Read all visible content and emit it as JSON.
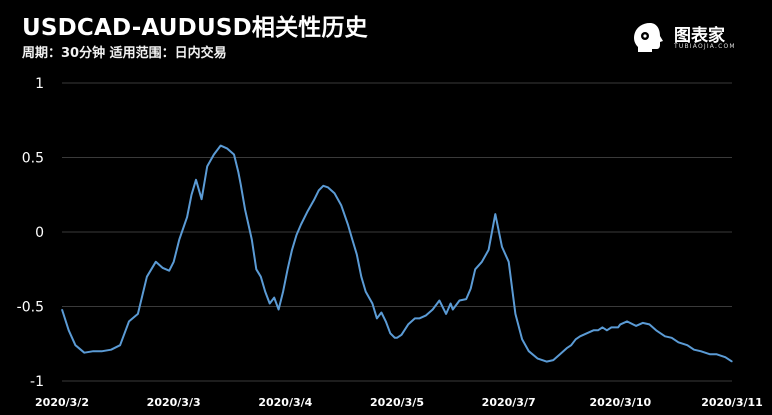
{
  "header": {
    "title": "USDCAD-AUDUSD相关性历史",
    "subtitle": "周期：30分钟  适用范围：日内交易"
  },
  "logo": {
    "name": "图表家",
    "sub": "TUBIAOJIA.COM",
    "icon": "head-silhouette-icon"
  },
  "colors": {
    "background": "#000000",
    "line": "#5b9bd5",
    "grid": "#3a3a3a",
    "text": "#ffffff"
  },
  "chart_data": {
    "type": "line",
    "title": "USDCAD-AUDUSD相关性历史",
    "xlabel": "",
    "ylabel": "",
    "ylim": [
      -1,
      1
    ],
    "yticks": [
      1,
      0.5,
      0,
      -0.5,
      -1
    ],
    "ytick_labels": [
      "1",
      "0.5",
      "0",
      "-0.5",
      "-1"
    ],
    "xticks": [
      "2020/3/2",
      "2020/3/3",
      "2020/3/4",
      "2020/3/5",
      "2020/3/7",
      "2020/3/10",
      "2020/3/11"
    ],
    "grid": "horizontal",
    "series": [
      {
        "name": "",
        "x_index": [
          0,
          0.06,
          0.12,
          0.2,
          0.28,
          0.36,
          0.44,
          0.52,
          0.6,
          0.68,
          0.76,
          0.84,
          0.9,
          0.96,
          1.0,
          1.05,
          1.12,
          1.16,
          1.2,
          1.25,
          1.3,
          1.36,
          1.42,
          1.48,
          1.54,
          1.58,
          1.6,
          1.64,
          1.7,
          1.74,
          1.78,
          1.82,
          1.86,
          1.9,
          1.94,
          1.98,
          2.02,
          2.06,
          2.1,
          2.14,
          2.2,
          2.26,
          2.3,
          2.34,
          2.38,
          2.44,
          2.5,
          2.56,
          2.6,
          2.64,
          2.68,
          2.72,
          2.78,
          2.82,
          2.86,
          2.9,
          2.94,
          2.98,
          3.0,
          3.04,
          3.1,
          3.16,
          3.2,
          3.26,
          3.32,
          3.38,
          3.44,
          3.48,
          3.5,
          3.56,
          3.62,
          3.66,
          3.7,
          3.76,
          3.82,
          3.88,
          3.94,
          4.0,
          4.06,
          4.12,
          4.18,
          4.26,
          4.34,
          4.4,
          4.46,
          4.52,
          4.56,
          4.6,
          4.64,
          4.7,
          4.76,
          4.8,
          4.84,
          4.88,
          4.92,
          4.98,
          5.0,
          5.06,
          5.14,
          5.2,
          5.26,
          5.32,
          5.4,
          5.46,
          5.52,
          5.6,
          5.66,
          5.72,
          5.8,
          5.86,
          5.9,
          5.94,
          6.0
        ],
        "values": [
          -0.52,
          -0.66,
          -0.76,
          -0.81,
          -0.8,
          -0.8,
          -0.79,
          -0.76,
          -0.6,
          -0.55,
          -0.3,
          -0.2,
          -0.24,
          -0.26,
          -0.2,
          -0.05,
          0.1,
          0.25,
          0.35,
          0.22,
          0.44,
          0.52,
          0.58,
          0.56,
          0.52,
          0.4,
          0.32,
          0.15,
          -0.05,
          -0.25,
          -0.3,
          -0.4,
          -0.48,
          -0.44,
          -0.52,
          -0.4,
          -0.25,
          -0.12,
          -0.02,
          0.05,
          0.14,
          0.22,
          0.28,
          0.31,
          0.3,
          0.26,
          0.18,
          0.05,
          -0.05,
          -0.15,
          -0.3,
          -0.4,
          -0.48,
          -0.58,
          -0.54,
          -0.6,
          -0.68,
          -0.71,
          -0.71,
          -0.69,
          -0.62,
          -0.58,
          -0.58,
          -0.56,
          -0.52,
          -0.46,
          -0.55,
          -0.48,
          -0.52,
          -0.46,
          -0.45,
          -0.38,
          -0.25,
          -0.2,
          -0.12,
          0.12,
          -0.1,
          -0.2,
          -0.55,
          -0.72,
          -0.8,
          -0.85,
          -0.87,
          -0.86,
          -0.82,
          -0.78,
          -0.76,
          -0.72,
          -0.7,
          -0.68,
          -0.66,
          -0.66,
          -0.64,
          -0.66,
          -0.64,
          -0.64,
          -0.62,
          -0.6,
          -0.63,
          -0.61,
          -0.62,
          -0.66,
          -0.7,
          -0.71,
          -0.74,
          -0.76,
          -0.79,
          -0.8,
          -0.82,
          -0.82,
          -0.83,
          -0.84,
          -0.87
        ]
      }
    ]
  }
}
